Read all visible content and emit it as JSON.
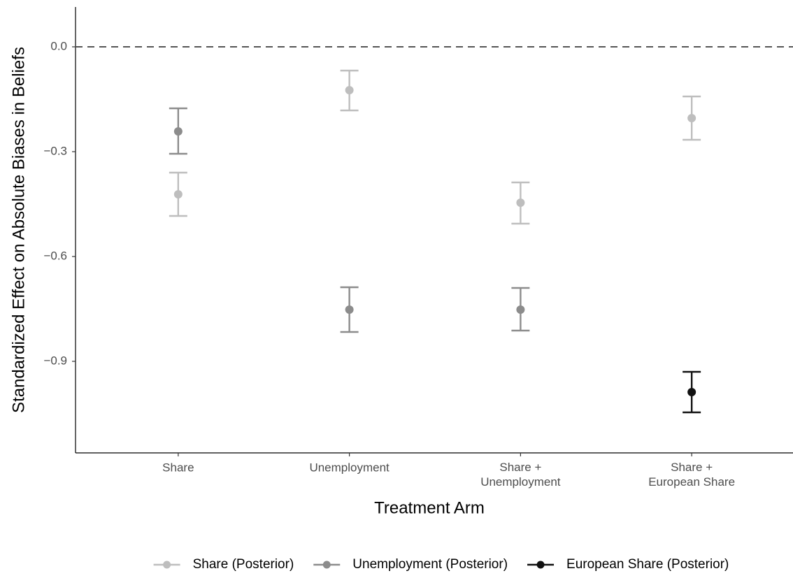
{
  "chart_data": {
    "type": "errorbar",
    "x_label": "Treatment Arm",
    "y_label": "Standardized Effect on Absolute Biases in Beliefs",
    "categories": [
      "Share",
      "Unemployment",
      "Share +\nUnemployment",
      "Share +\nEuropean Share"
    ],
    "series": [
      {
        "name": "Share (Posterior)",
        "color": "#bebebe",
        "values": [
          -0.422,
          -0.124,
          -0.446,
          -0.204
        ],
        "lower": [
          -0.484,
          -0.182,
          -0.506,
          -0.266
        ],
        "upper": [
          -0.36,
          -0.068,
          -0.388,
          -0.142
        ]
      },
      {
        "name": "Unemployment (Posterior)",
        "color": "#8c8c8c",
        "values": [
          -0.242,
          -0.752,
          -0.752,
          null
        ],
        "lower": [
          -0.306,
          -0.816,
          -0.812,
          null
        ],
        "upper": [
          -0.176,
          -0.688,
          -0.69,
          null
        ]
      },
      {
        "name": "European Share (Posterior)",
        "color": "#111111",
        "values": [
          null,
          null,
          null,
          -0.988
        ],
        "lower": [
          null,
          null,
          null,
          -1.046
        ],
        "upper": [
          null,
          null,
          null,
          -0.93
        ]
      }
    ],
    "hline": 0,
    "ylim": [
      -1.162,
      0.114
    ],
    "yticks": [
      {
        "value": 0,
        "label": "0.0"
      },
      {
        "value": -0.3,
        "label": "−0.3"
      },
      {
        "value": -0.6,
        "label": "−0.6"
      },
      {
        "value": -0.9,
        "label": "−0.9"
      }
    ],
    "legend_position": "bottom"
  }
}
